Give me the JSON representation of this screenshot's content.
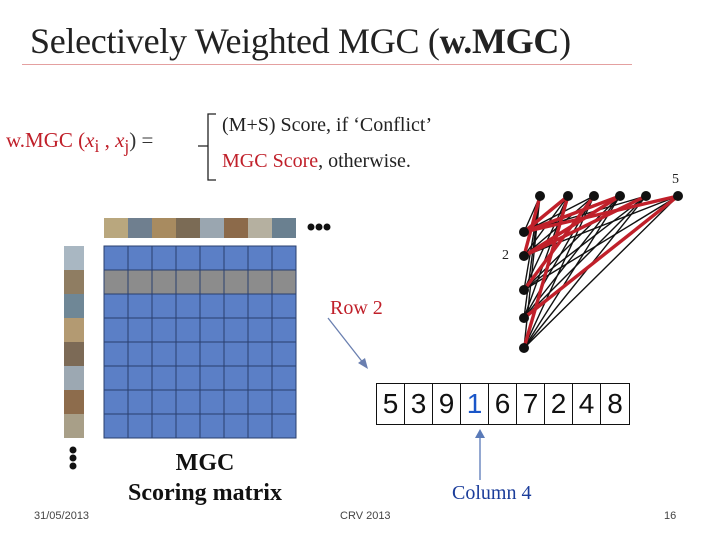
{
  "title": {
    "prefix": "Selectively Weighted MGC (",
    "bold": "w.MGC",
    "suffix": ")"
  },
  "formula": {
    "lhs_prefix": "w.MGC (",
    "xi": "x",
    "i": "i",
    "sep": " , ",
    "xj": "x",
    "j": "j",
    "lhs_suffix": ") =",
    "case1": "(M+S) Score,  if  ‘Conflict’",
    "case2_red": "MGC Score",
    "case2_rest": ",  otherwise."
  },
  "graph": {
    "label_5": "5",
    "label_2": "2"
  },
  "row_label": "Row 2",
  "matrix_label_line1": "MGC",
  "matrix_label_line2": "Scoring matrix",
  "sequence": [
    "5",
    "3",
    "9",
    "1",
    "6",
    "7",
    "2",
    "4",
    "8"
  ],
  "highlight_index": 3,
  "column_label": "Column 4",
  "footer": {
    "date": "31/05/2013",
    "venue": "CRV 2013",
    "page": "16"
  },
  "colors": {
    "accent_red": "#c0202a",
    "matrix_blue": "#5b7fc6",
    "row_gray": "#8c8c8c",
    "highlight_blue": "#1a56c8"
  }
}
